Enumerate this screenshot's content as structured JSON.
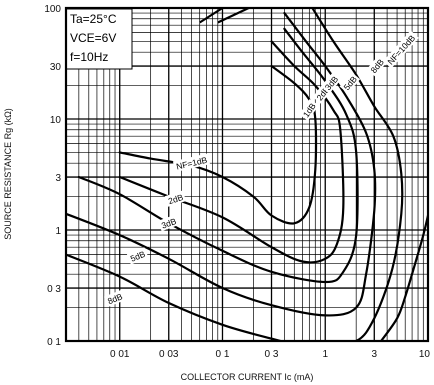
{
  "chart_data": {
    "type": "line",
    "xlabel": "COLLECTOR CURRENT  Ic (mA)",
    "ylabel": "SOURCE RESISTANCE  Rg (kΩ)",
    "x_scale": "log",
    "y_scale": "log",
    "xlim": [
      0.003,
      10
    ],
    "ylim": [
      0.1,
      100
    ],
    "x_ticks": [
      0.01,
      0.03,
      0.1,
      0.3,
      1,
      3,
      10
    ],
    "x_tick_labels": [
      "0 01",
      "0 03",
      "0 1",
      "0 3",
      "1",
      "3",
      "10"
    ],
    "y_ticks": [
      0.1,
      0.3,
      1,
      3,
      10,
      30,
      100
    ],
    "y_tick_labels": [
      "0 1",
      "0 3",
      "1",
      "3",
      "10",
      "30",
      "100"
    ],
    "grid": true,
    "conditions": [
      "Ta=25°C",
      "VCE=6V",
      "f=10Hz"
    ],
    "series": [
      {
        "name": "NF=1dB",
        "points": [
          [
            0.01,
            5.0
          ],
          [
            0.02,
            4.4
          ],
          [
            0.05,
            3.8
          ],
          [
            0.1,
            3.0
          ],
          [
            0.2,
            2.0
          ],
          [
            0.3,
            1.35
          ],
          [
            0.5,
            1.15
          ],
          [
            0.7,
            1.6
          ],
          [
            0.8,
            3.5
          ],
          [
            0.8,
            10
          ],
          [
            0.7,
            15
          ],
          [
            0.5,
            21
          ],
          [
            0.3,
            30
          ]
        ]
      },
      {
        "name": "2dB",
        "points": [
          [
            0.01,
            3.0
          ],
          [
            0.03,
            2.0
          ],
          [
            0.1,
            1.3
          ],
          [
            0.3,
            0.7
          ],
          [
            0.6,
            0.52
          ],
          [
            1.0,
            0.55
          ],
          [
            1.3,
            0.75
          ],
          [
            1.5,
            1.6
          ],
          [
            1.4,
            8
          ],
          [
            1.2,
            12
          ],
          [
            0.8,
            20
          ],
          [
            0.5,
            30
          ],
          [
            0.3,
            50
          ]
        ]
      },
      {
        "name": "3dB",
        "points": [
          [
            0.004,
            3.0
          ],
          [
            0.01,
            2.1
          ],
          [
            0.03,
            1.15
          ],
          [
            0.1,
            0.65
          ],
          [
            0.3,
            0.42
          ],
          [
            1.0,
            0.34
          ],
          [
            1.5,
            0.42
          ],
          [
            2.0,
            0.9
          ],
          [
            2.0,
            5
          ],
          [
            1.6,
            11
          ],
          [
            1.0,
            22
          ],
          [
            0.6,
            40
          ],
          [
            0.4,
            65
          ]
        ]
      },
      {
        "name": "5dB",
        "points": [
          [
            0.003,
            1.4
          ],
          [
            0.01,
            0.9
          ],
          [
            0.03,
            0.55
          ],
          [
            0.1,
            0.3
          ],
          [
            0.3,
            0.21
          ],
          [
            1.0,
            0.17
          ],
          [
            2.0,
            0.2
          ],
          [
            2.5,
            0.4
          ],
          [
            3.0,
            1.5
          ],
          [
            3.0,
            3.5
          ],
          [
            2.5,
            7.5
          ],
          [
            1.6,
            16
          ],
          [
            1.0,
            30
          ],
          [
            0.65,
            50
          ],
          [
            0.4,
            90
          ]
        ]
      },
      {
        "name": "8dB",
        "points": [
          [
            0.003,
            0.6
          ],
          [
            0.01,
            0.38
          ],
          [
            0.03,
            0.22
          ],
          [
            0.1,
            0.14
          ],
          [
            0.3,
            0.105
          ],
          [
            0.5,
            0.095
          ],
          [
            1.0,
            0.098
          ],
          [
            2.0,
            0.1
          ],
          [
            3.0,
            0.16
          ],
          [
            4.5,
            0.45
          ],
          [
            5.5,
            1.4
          ],
          [
            5.5,
            3.2
          ],
          [
            4.6,
            7
          ],
          [
            3.0,
            13
          ],
          [
            2.0,
            25
          ],
          [
            1.2,
            50
          ],
          [
            0.75,
            100
          ]
        ]
      },
      {
        "name": "NF=10dB",
        "points": [
          [
            3.5,
            0.1
          ],
          [
            5.0,
            0.16
          ],
          [
            6.0,
            0.25
          ],
          [
            7.5,
            0.5
          ],
          [
            9.0,
            0.9
          ],
          [
            10.0,
            1.35
          ]
        ]
      }
    ],
    "extra_curves": [
      [
        [
          0.1,
          100
        ],
        [
          0.06,
          74
        ]
      ],
      [
        [
          0.18,
          100
        ],
        [
          0.09,
          74
        ]
      ]
    ]
  }
}
